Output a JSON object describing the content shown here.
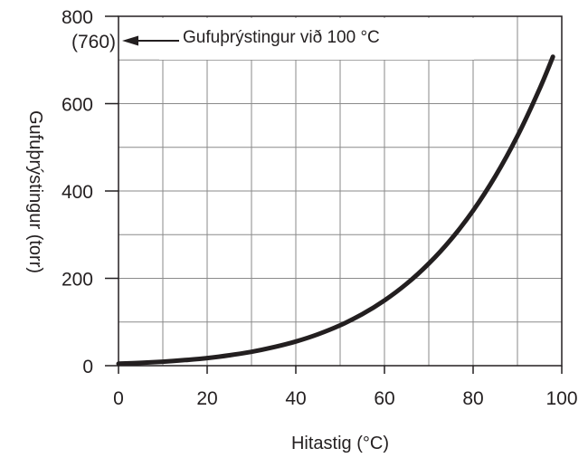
{
  "chart_data": {
    "type": "line",
    "xlabel": "Hitastig (°C)",
    "ylabel": "Gufuþrýstingur (torr)",
    "xlim": [
      0,
      100
    ],
    "ylim": [
      0,
      800
    ],
    "x_ticks": [
      "0",
      "20",
      "40",
      "60",
      "80",
      "100"
    ],
    "y_ticks": [
      "0",
      "200",
      "400",
      "600",
      "800"
    ],
    "grid": true,
    "annotation": {
      "tick_label": "(760)",
      "text": "Gufuþrýstingur við 100 °C",
      "value": 760
    },
    "series": [
      {
        "x": [
          0,
          5,
          10,
          15,
          20,
          25,
          30,
          35,
          40,
          45,
          50,
          55,
          60,
          65,
          70,
          75,
          80,
          85,
          90,
          95,
          98
        ],
        "y": [
          4.6,
          6.5,
          9.2,
          12.8,
          17.5,
          23.8,
          31.8,
          42.2,
          55.3,
          71.9,
          92.5,
          118,
          149.4,
          187.5,
          233.7,
          289.1,
          355.1,
          433.6,
          525.8,
          633.9,
          707.3
        ]
      }
    ]
  }
}
